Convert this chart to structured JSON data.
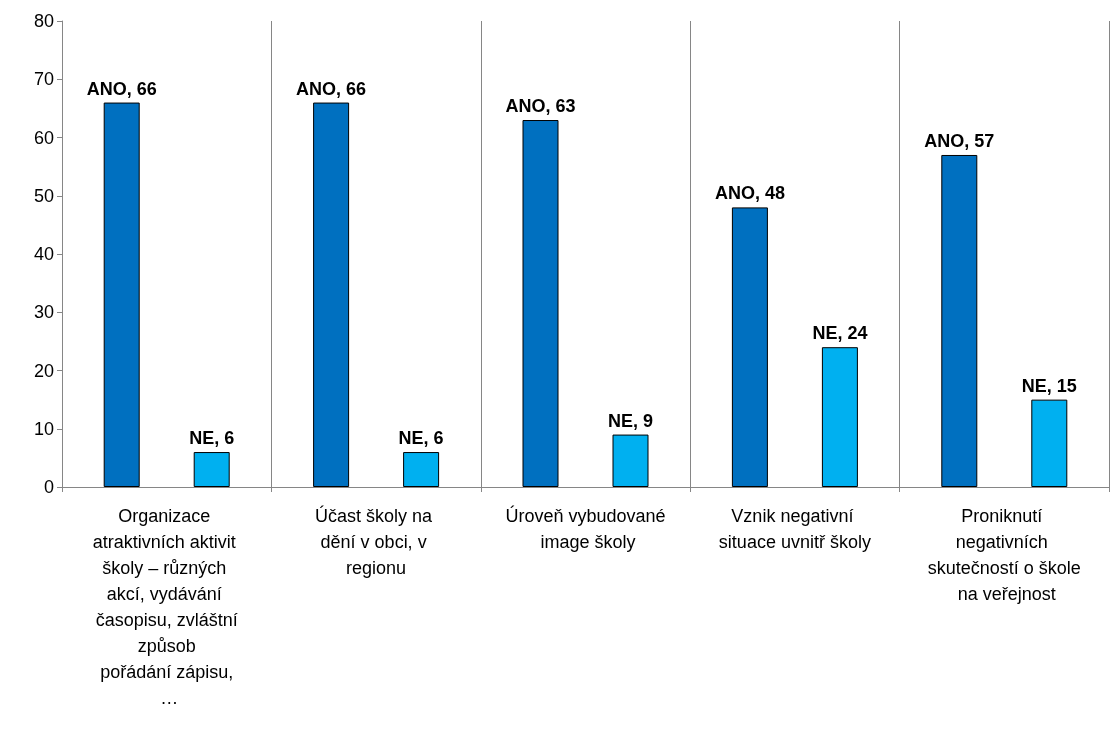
{
  "chart_data": {
    "type": "bar",
    "categories": [
      "Organizace atraktivních aktivit školy – různých akcí, vydávání časopisu, zvláštní způsob pořádání zápisu, …",
      "Účast školy na dění v obci, v regionu",
      "Úroveň vybudované image školy",
      "Vznik negativní situace uvnitř školy",
      "Proniknutí negativních skutečností o škole na veřejnost"
    ],
    "series": [
      {
        "color": "#0070c0",
        "values": [
          66,
          66,
          63,
          48,
          57
        ],
        "value_labels": [
          "ANO, 66",
          "ANO, 66",
          "ANO, 63",
          "ANO, 48",
          "ANO, 57"
        ]
      },
      {
        "color": "#00b0f0",
        "values": [
          6,
          6,
          9,
          24,
          15
        ],
        "value_labels": [
          "NE, 6",
          "NE, 6",
          "NE, 9",
          "NE, 24",
          "NE, 15"
        ]
      }
    ],
    "ylim": [
      0,
      80
    ],
    "yticks": [
      0,
      10,
      20,
      30,
      40,
      50,
      60,
      70,
      80
    ],
    "grid": "x"
  }
}
